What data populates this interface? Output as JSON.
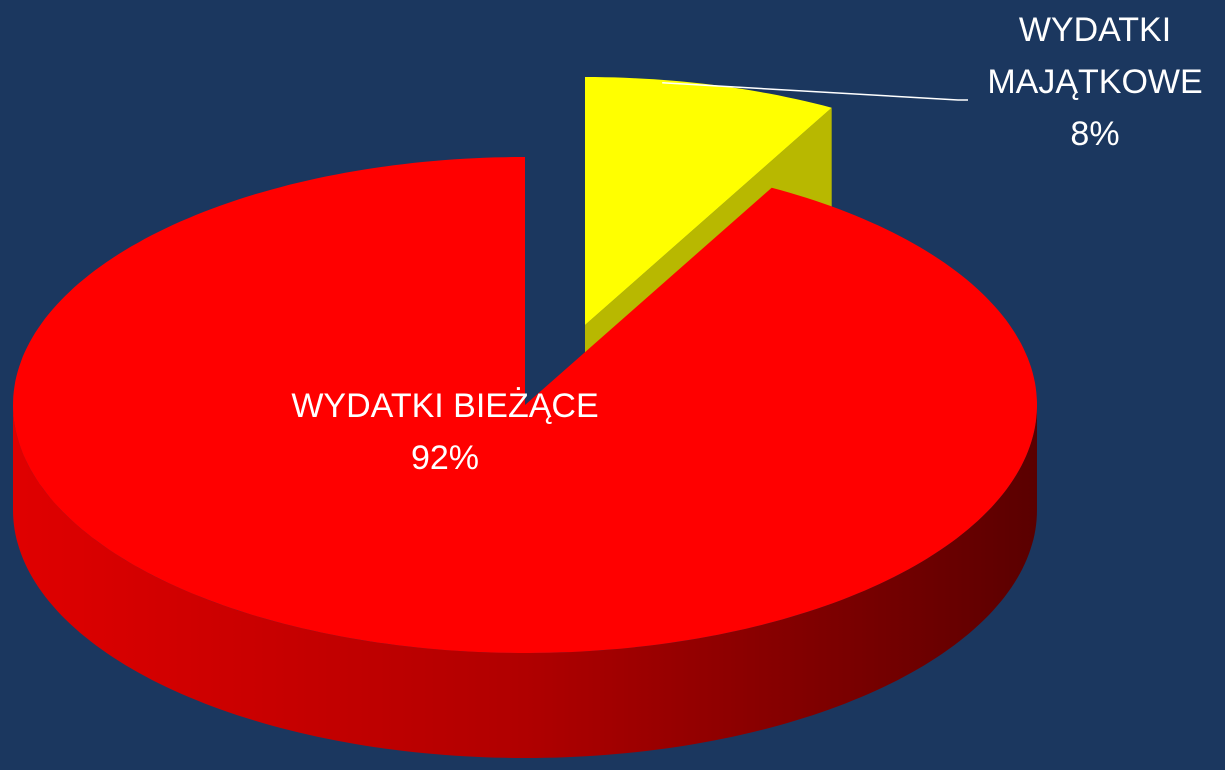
{
  "chart_data": {
    "type": "pie",
    "categories": [
      "WYDATKI BIEŻĄCE",
      "WYDATKI MAJĄTKOWE"
    ],
    "values": [
      92,
      8
    ],
    "value_labels": [
      "92%",
      "8%"
    ],
    "colors": [
      "#ff0000",
      "#ffff00"
    ],
    "exploded": [
      false,
      true
    ]
  }
}
